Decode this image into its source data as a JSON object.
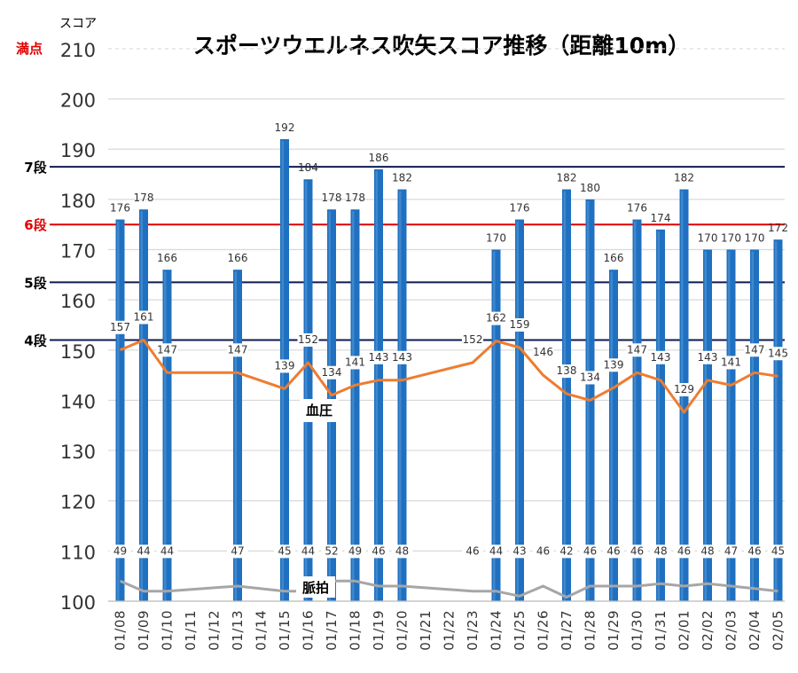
{
  "chart_data": {
    "type": "bar",
    "title": "スポーツウエルネス吹矢スコア推移（距離10m）",
    "ylabel": "スコア",
    "ylim": [
      100,
      210
    ],
    "yticks": [
      100,
      110,
      120,
      130,
      140,
      150,
      160,
      170,
      180,
      190,
      200,
      210
    ],
    "top_tick_label": "満点",
    "categories": [
      "01/08",
      "01/09",
      "01/10",
      "01/11",
      "01/12",
      "01/13",
      "01/14",
      "01/15",
      "01/16",
      "01/17",
      "01/18",
      "01/19",
      "01/20",
      "01/21",
      "01/22",
      "01/23",
      "01/24",
      "01/25",
      "01/26",
      "01/27",
      "01/28",
      "01/29",
      "01/30",
      "01/31",
      "02/01",
      "02/02",
      "02/03",
      "02/04",
      "02/05"
    ],
    "reference_lines": [
      {
        "label": "7段",
        "value": 186,
        "color": "#0d1b4f"
      },
      {
        "label": "6段",
        "value": 174,
        "color": "#e00000"
      },
      {
        "label": "5段",
        "value": 162,
        "color": "#0d1b4f"
      },
      {
        "label": "4段",
        "value": 150,
        "color": "#0d1b4f"
      }
    ],
    "series": [
      {
        "name": "スコア",
        "kind": "bar",
        "color": "#1f70c0",
        "values": [
          176,
          178,
          166,
          null,
          null,
          166,
          null,
          192,
          184,
          178,
          178,
          186,
          182,
          null,
          null,
          null,
          170,
          176,
          null,
          182,
          180,
          166,
          176,
          174,
          182,
          170,
          170,
          170,
          172
        ]
      },
      {
        "name": "血圧",
        "kind": "line",
        "color": "#ed7d31",
        "values": [
          157,
          161,
          147,
          null,
          null,
          147,
          null,
          139,
          152,
          134,
          141,
          143,
          143,
          null,
          null,
          152,
          162,
          159,
          146,
          138,
          134,
          139,
          147,
          143,
          129,
          143,
          141,
          147,
          145
        ],
        "display_values": [
          150,
          152,
          145.5,
          null,
          null,
          145.5,
          null,
          142.3,
          147.5,
          141,
          143,
          144,
          144,
          null,
          null,
          147.5,
          151.8,
          150.5,
          145,
          141.3,
          140,
          142.5,
          145.5,
          144,
          137.6,
          144,
          143,
          145.5,
          144.8
        ]
      },
      {
        "name": "脈拍",
        "kind": "line",
        "color": "#a6a6a6",
        "values": [
          49,
          44,
          44,
          null,
          null,
          47,
          null,
          45,
          44,
          52,
          49,
          46,
          48,
          null,
          null,
          46,
          44,
          43,
          46,
          42,
          46,
          46,
          46,
          48,
          46,
          48,
          47,
          46,
          45
        ],
        "display_values": [
          104,
          102,
          102,
          null,
          null,
          103,
          null,
          102,
          102,
          104,
          104,
          103,
          103,
          null,
          null,
          102,
          102,
          101,
          103,
          100.8,
          103,
          103,
          103,
          103.5,
          103,
          103.5,
          103,
          102.5,
          102
        ]
      }
    ]
  },
  "labels": {
    "bp_series_label": "血圧",
    "pulse_series_label": "脈拍"
  }
}
